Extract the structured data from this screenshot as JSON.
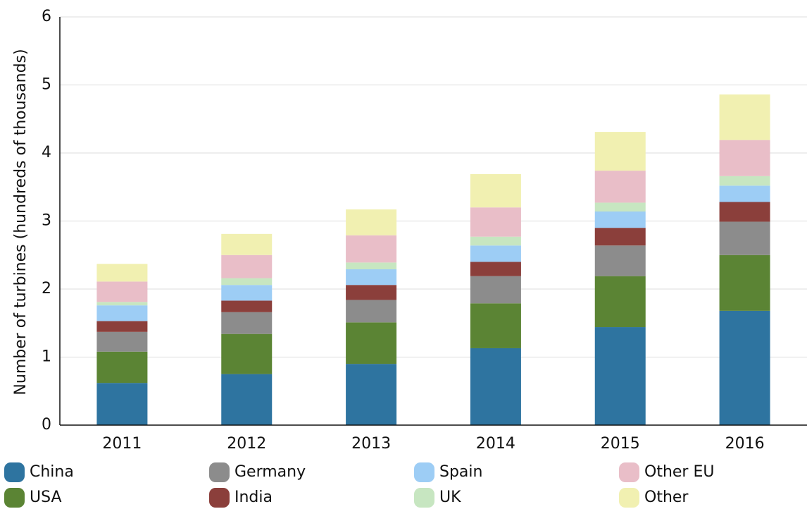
{
  "chart_data": {
    "type": "stacked_bar",
    "y_label": "Number of turbines (hundreds of thousands)",
    "categories": [
      "2011",
      "2012",
      "2013",
      "2014",
      "2015",
      "2016"
    ],
    "series": [
      {
        "name": "China",
        "color": "#2e74a0",
        "values": [
          0.62,
          0.75,
          0.9,
          1.13,
          1.44,
          1.68
        ]
      },
      {
        "name": "USA",
        "color": "#5b8434",
        "values": [
          0.46,
          0.59,
          0.61,
          0.66,
          0.75,
          0.82
        ]
      },
      {
        "name": "Germany",
        "color": "#8c8c8c",
        "values": [
          0.29,
          0.32,
          0.33,
          0.4,
          0.45,
          0.49
        ]
      },
      {
        "name": "India",
        "color": "#8b3f3b",
        "values": [
          0.16,
          0.17,
          0.22,
          0.21,
          0.26,
          0.29
        ]
      },
      {
        "name": "Spain",
        "color": "#9dcdf5",
        "values": [
          0.23,
          0.23,
          0.23,
          0.24,
          0.24,
          0.24
        ]
      },
      {
        "name": "UK",
        "color": "#c7e6c1",
        "values": [
          0.05,
          0.1,
          0.1,
          0.13,
          0.13,
          0.14
        ]
      },
      {
        "name": "Other EU",
        "color": "#e9bec8",
        "values": [
          0.3,
          0.34,
          0.4,
          0.43,
          0.47,
          0.53
        ]
      },
      {
        "name": "Other",
        "color": "#f1f0b1",
        "values": [
          0.26,
          0.31,
          0.38,
          0.49,
          0.57,
          0.67
        ]
      }
    ],
    "ylim": [
      0,
      6
    ],
    "yticks": [
      0,
      1,
      2,
      3,
      4,
      5,
      6
    ],
    "grid": true
  }
}
